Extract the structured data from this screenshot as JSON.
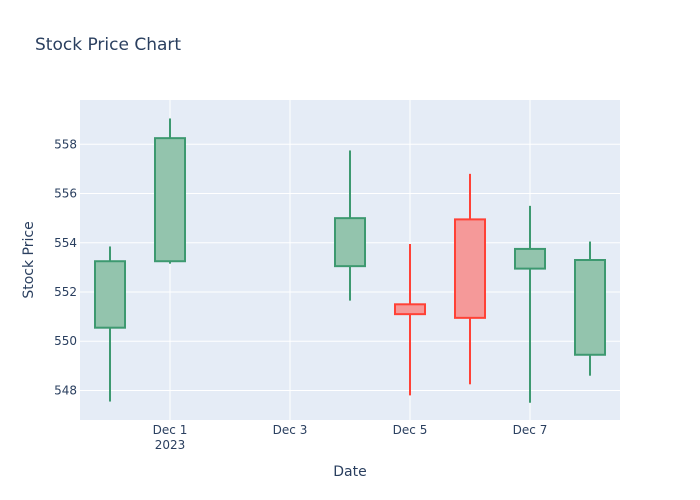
{
  "chart_data": {
    "type": "candlestick",
    "title": "Stock Price Chart",
    "xlabel": "Date",
    "ylabel": "Stock Price",
    "x_range": [
      "2023-11-29T12:00",
      "2023-12-08T12:00"
    ],
    "ylim": [
      546.8,
      559.8
    ],
    "x_ticks": [
      {
        "date": "2023-12-01",
        "label": "Dec 1",
        "sublabel": "2023"
      },
      {
        "date": "2023-12-03",
        "label": "Dec 3"
      },
      {
        "date": "2023-12-05",
        "label": "Dec 5"
      },
      {
        "date": "2023-12-07",
        "label": "Dec 7"
      }
    ],
    "y_ticks": [
      548,
      550,
      552,
      554,
      556,
      558
    ],
    "grid": true,
    "increasing_color": "#3D9970",
    "increasing_fill": "#93C4AD",
    "decreasing_color": "#FF4136",
    "decreasing_fill": "#F59999",
    "plot_bg": "#E5ECF6",
    "candles": [
      {
        "date": "2023-11-30",
        "open": 550.55,
        "high": 553.85,
        "low": 547.55,
        "close": 553.25
      },
      {
        "date": "2023-12-01",
        "open": 553.25,
        "high": 559.05,
        "low": 553.15,
        "close": 558.25
      },
      {
        "date": "2023-12-04",
        "open": 553.05,
        "high": 557.75,
        "low": 551.65,
        "close": 555.0
      },
      {
        "date": "2023-12-05",
        "open": 551.5,
        "high": 553.95,
        "low": 547.8,
        "close": 551.1
      },
      {
        "date": "2023-12-06",
        "open": 554.95,
        "high": 556.8,
        "low": 548.25,
        "close": 550.95
      },
      {
        "date": "2023-12-07",
        "open": 552.95,
        "high": 555.5,
        "low": 547.5,
        "close": 553.75
      },
      {
        "date": "2023-12-08",
        "open": 549.45,
        "high": 554.05,
        "low": 548.6,
        "close": 553.3
      }
    ]
  }
}
